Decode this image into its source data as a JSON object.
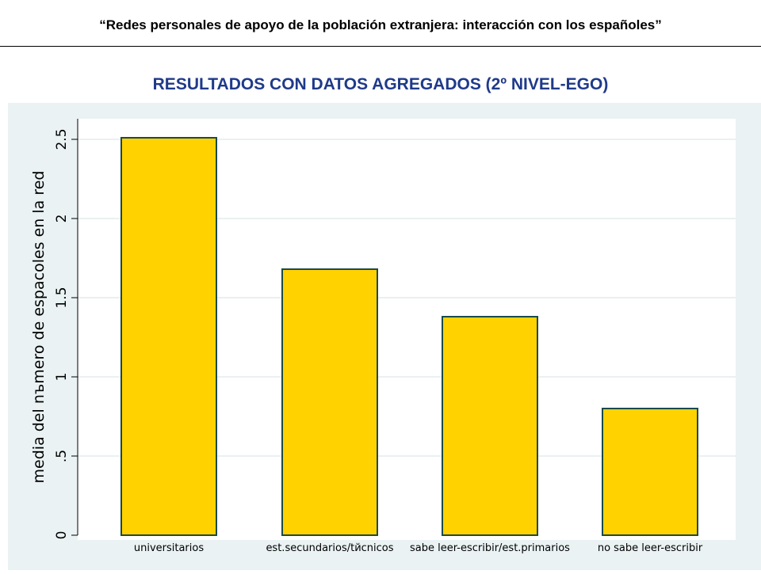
{
  "header": {
    "title": "“Redes personales de apoyo de la población extranjera: interacción con los españoles”"
  },
  "slide": {
    "title": "RESULTADOS CON DATOS AGREGADOS (2º NIVEL-EGO)"
  },
  "colors": {
    "bar_fill": "#FFD200",
    "bar_stroke": "#1a4a4a",
    "plot_bg": "#eaf2f3",
    "title_color": "#1f3a8a"
  },
  "chart_data": {
    "type": "bar",
    "categories": [
      "universitarios",
      "est.secundarios/tйcnicos",
      "sabe leer-escribir/est.primarios",
      "no sabe leer-escribir"
    ],
    "values": [
      2.51,
      1.68,
      1.38,
      0.8
    ],
    "title": "",
    "xlabel": "",
    "ylabel": "media del nъmero de espacoles en la red",
    "ylim": [
      0,
      2.5
    ],
    "yticks": [
      "0",
      ".5",
      "1",
      "1.5",
      "2",
      "2.5"
    ],
    "ytick_values": [
      0,
      0.5,
      1,
      1.5,
      2,
      2.5
    ],
    "grid": true,
    "legend": "none"
  }
}
